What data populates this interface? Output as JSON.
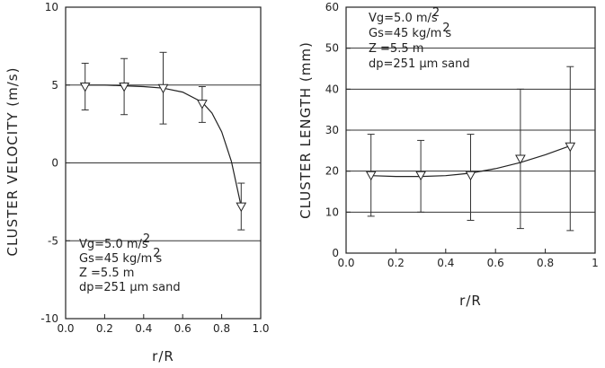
{
  "chart_data": [
    {
      "type": "scatter",
      "xlabel": "r/R",
      "ylabel": "CLUSTER VELOCITY (m/s)",
      "xlim": [
        0.0,
        1.0
      ],
      "ylim": [
        -10,
        10
      ],
      "xticks": [
        0.0,
        0.2,
        0.4,
        0.6,
        0.8,
        1.0
      ],
      "xtick_labels": [
        "0.0",
        "0.2",
        "0.4",
        "0.6",
        "0.8",
        "1.0"
      ],
      "yticks": [
        -10,
        -5,
        0,
        5,
        10
      ],
      "ytick_labels": [
        "-10",
        "-5",
        "0",
        "5",
        "10"
      ],
      "grid_y": [
        5,
        0,
        -5
      ],
      "legend_position": "bottom-left",
      "annotation_lines": [
        {
          "text": "Vg=5.0 m/s",
          "sup": "2"
        },
        {
          "text": "Gs=45 kg/m s",
          "sup": "2"
        },
        {
          "text": "Z =5.5 m",
          "sup": ""
        },
        {
          "text": "dp=251 μm sand",
          "sup": ""
        }
      ],
      "marker": "down-triangle",
      "series": [
        {
          "x": [
            0.1,
            0.3,
            0.5,
            0.7,
            0.9
          ],
          "y": [
            4.9,
            4.9,
            4.8,
            3.8,
            -2.8
          ],
          "err_low": [
            3.4,
            3.1,
            2.5,
            2.6,
            -4.3
          ],
          "err_high": [
            6.4,
            6.7,
            7.1,
            4.9,
            -1.3
          ]
        }
      ],
      "fit_curve": {
        "x": [
          0.1,
          0.2,
          0.3,
          0.4,
          0.5,
          0.6,
          0.7,
          0.75,
          0.8,
          0.85,
          0.9
        ],
        "y": [
          5.0,
          5.0,
          4.95,
          4.9,
          4.8,
          4.55,
          3.9,
          3.2,
          2.0,
          0.1,
          -2.8
        ]
      }
    },
    {
      "type": "scatter",
      "xlabel": "r/R",
      "ylabel": "CLUSTER LENGTH (mm)",
      "xlim": [
        0.0,
        1.0
      ],
      "ylim": [
        0,
        60
      ],
      "xticks": [
        0.0,
        0.2,
        0.4,
        0.6,
        0.8,
        1.0
      ],
      "xtick_labels": [
        "0.0",
        "0.2",
        "0.4",
        "0.6",
        "0.8",
        "1"
      ],
      "yticks": [
        0,
        10,
        20,
        30,
        40,
        50,
        60
      ],
      "ytick_labels": [
        "0",
        "10",
        "20",
        "30",
        "40",
        "50",
        "60"
      ],
      "grid_y": [
        10,
        20,
        30,
        40,
        50
      ],
      "legend_position": "top-left",
      "annotation_lines": [
        {
          "text": "Vg=5.0 m/s",
          "sup": "2"
        },
        {
          "text": "Gs=45 kg/m s",
          "sup": "2"
        },
        {
          "text": "Z =5.5 m",
          "sup": ""
        },
        {
          "text": "dp=251 μm sand",
          "sup": ""
        }
      ],
      "marker": "down-triangle",
      "series": [
        {
          "x": [
            0.1,
            0.3,
            0.5,
            0.7,
            0.9
          ],
          "y": [
            19,
            19,
            19,
            23,
            26
          ],
          "err_low": [
            9,
            10,
            8,
            6,
            5.5
          ],
          "err_high": [
            29,
            27.5,
            29,
            40,
            45.5
          ]
        }
      ],
      "fit_curve": {
        "x": [
          0.1,
          0.2,
          0.3,
          0.4,
          0.5,
          0.6,
          0.7,
          0.8,
          0.9
        ],
        "y": [
          18.9,
          18.7,
          18.7,
          18.9,
          19.5,
          20.6,
          22.1,
          24.0,
          26.2
        ]
      }
    }
  ]
}
